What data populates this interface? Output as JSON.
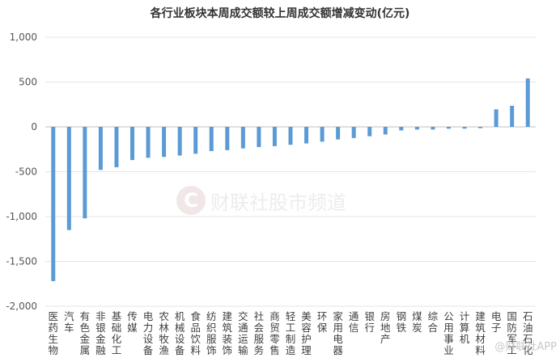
{
  "watermark": "财联社股市频道",
  "watermark_logo": "C",
  "corner_watermark": "@财联社APP",
  "chart_data": {
    "type": "bar",
    "title": "各行业板块本周成交额较上周成交额增减变动(亿元)",
    "xlabel": "",
    "ylabel": "",
    "ylim": [
      -2000,
      1000
    ],
    "yticks": [
      1000,
      500,
      0,
      -500,
      -1000,
      -1500,
      -2000
    ],
    "ytick_labels": [
      "1,000",
      "500",
      "0",
      "-500",
      "-1,000",
      "-1,500",
      "-2,000"
    ],
    "grid": true,
    "color": "#5b9bd5",
    "categories": [
      "医药生物",
      "汽车",
      "有色金属",
      "非银金融",
      "基础化工",
      "传媒",
      "电力设备",
      "农林牧渔",
      "机械设备",
      "食品饮料",
      "纺织服饰",
      "建筑装饰",
      "交通运输",
      "社会服务",
      "商贸零售",
      "轻工制造",
      "美容护理",
      "环保",
      "家用电器",
      "通信",
      "银行",
      "房地产",
      "钢铁",
      "煤炭",
      "综合",
      "公用事业",
      "计算机",
      "建筑材料",
      "电子",
      "国防军工",
      "石油石化"
    ],
    "values": [
      -1720,
      -1150,
      -1020,
      -480,
      -450,
      -370,
      -345,
      -335,
      -320,
      -300,
      -270,
      -260,
      -240,
      -225,
      -215,
      -200,
      -185,
      -165,
      -140,
      -125,
      -105,
      -85,
      -40,
      -30,
      -30,
      -20,
      -20,
      -15,
      195,
      235,
      540
    ]
  }
}
